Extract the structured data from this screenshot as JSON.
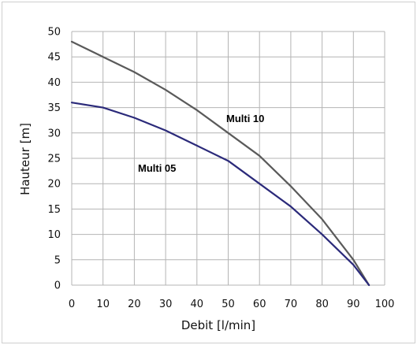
{
  "chart_data": {
    "type": "line",
    "title": "",
    "xlabel": "Debit [l/min]",
    "ylabel": "Hauteur [m]",
    "xlim": [
      0,
      100
    ],
    "ylim": [
      0,
      50
    ],
    "x_ticks": [
      0,
      10,
      20,
      30,
      40,
      50,
      60,
      70,
      80,
      90,
      100
    ],
    "y_ticks": [
      0,
      5,
      10,
      15,
      20,
      25,
      30,
      35,
      40,
      45,
      50
    ],
    "grid": true,
    "legend": "none",
    "series": [
      {
        "name": "Multi 10",
        "color": "#5a5a5a",
        "x": [
          0,
          10,
          20,
          30,
          40,
          50,
          60,
          70,
          80,
          90,
          95
        ],
        "y": [
          48,
          45,
          42,
          38.5,
          34.5,
          30,
          25.5,
          19.5,
          13,
          5,
          0
        ]
      },
      {
        "name": "Multi 05",
        "color": "#2b2a7a",
        "x": [
          0,
          10,
          20,
          30,
          40,
          50,
          60,
          70,
          80,
          90,
          95
        ],
        "y": [
          36,
          35,
          33,
          30.5,
          27.5,
          24.5,
          20,
          15.5,
          10,
          4,
          0
        ]
      }
    ]
  }
}
